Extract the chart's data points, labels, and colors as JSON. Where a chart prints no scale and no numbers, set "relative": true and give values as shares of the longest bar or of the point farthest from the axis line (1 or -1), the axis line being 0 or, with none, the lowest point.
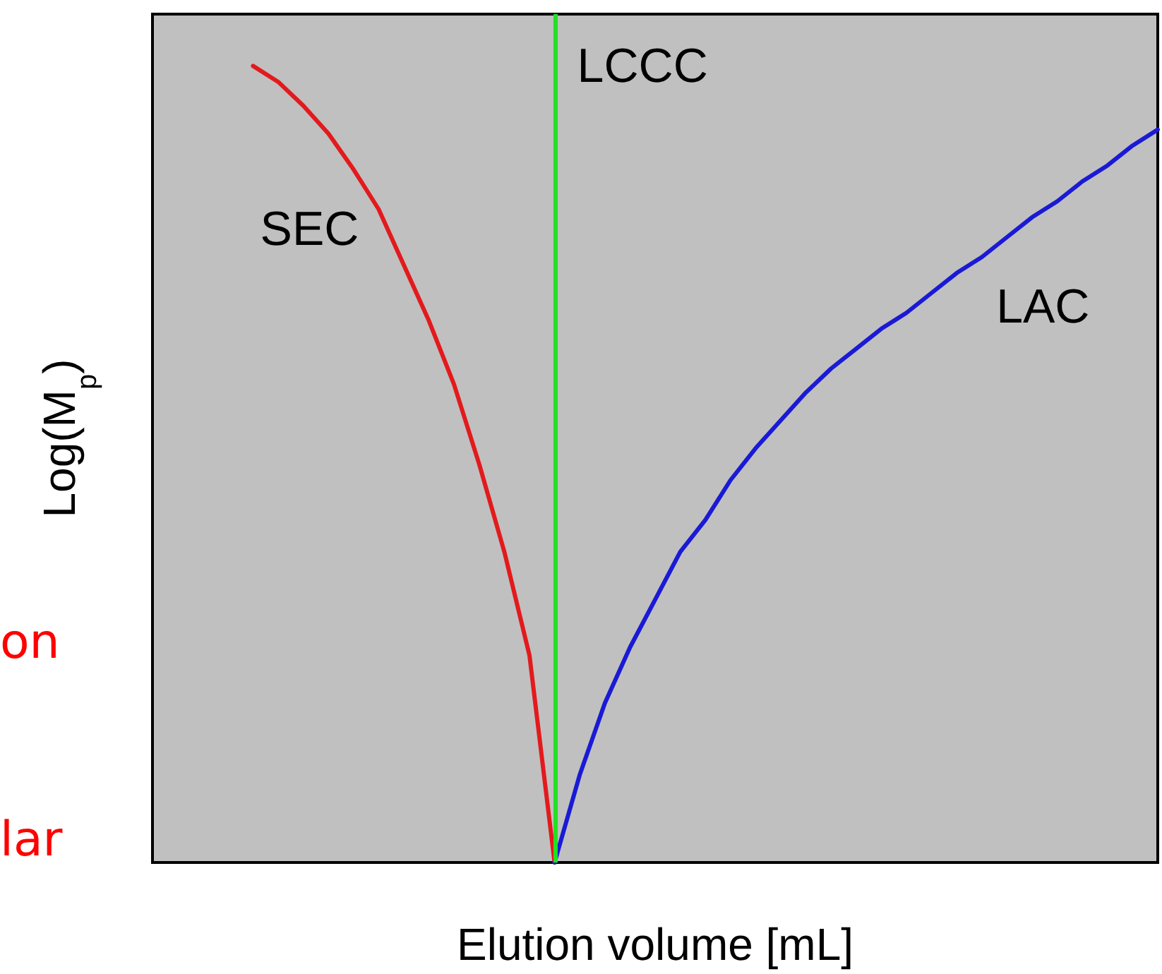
{
  "chart_data": {
    "type": "line",
    "relative": true,
    "xlabel": "Elution volume [mL]",
    "ylabel": "Log(M$_{p}$)",
    "categories": [
      null,
      null,
      null,
      null,
      null,
      null,
      null,
      null,
      null,
      null,
      null,
      null,
      null,
      null,
      null,
      null,
      null,
      null,
      null,
      null,
      null,
      null,
      null,
      null,
      null,
      null,
      null,
      null,
      null,
      null,
      null,
      null,
      null,
      null,
      null,
      null,
      null,
      null,
      null,
      null,
      null
    ],
    "grid": false,
    "legend": false,
    "marker": "none",
    "line_style": "solid",
    "series": [
      {
        "name": "SEC",
        "color": "#e31a1c",
        "values": [
          null,
          null,
          null,
          null,
          1.0,
          0.98,
          0.95,
          0.915,
          0.87,
          0.82,
          0.75,
          0.68,
          0.6,
          0.5,
          0.39,
          0.26,
          0,
          null,
          null,
          null,
          null,
          null,
          null,
          null,
          null,
          null,
          null,
          null,
          null,
          null,
          null,
          null,
          null,
          null,
          null,
          null,
          null,
          null,
          null,
          null,
          null
        ]
      },
      {
        "name": "LAC",
        "color": "#1a1ad6",
        "values": [
          null,
          null,
          null,
          null,
          null,
          null,
          null,
          null,
          null,
          null,
          null,
          null,
          null,
          null,
          null,
          null,
          0,
          0.11,
          0.2,
          0.27,
          0.33,
          0.39,
          0.43,
          0.48,
          0.52,
          0.555,
          0.59,
          0.62,
          0.645,
          0.67,
          0.69,
          0.715,
          0.74,
          0.76,
          0.785,
          0.81,
          0.83,
          0.855,
          0.875,
          0.9,
          0.92
        ]
      }
    ],
    "ref_lines": [
      {
        "axis": "x",
        "label": "LCCC",
        "color": "#22e022"
      }
    ],
    "annotations": [
      "on",
      "lar"
    ]
  }
}
